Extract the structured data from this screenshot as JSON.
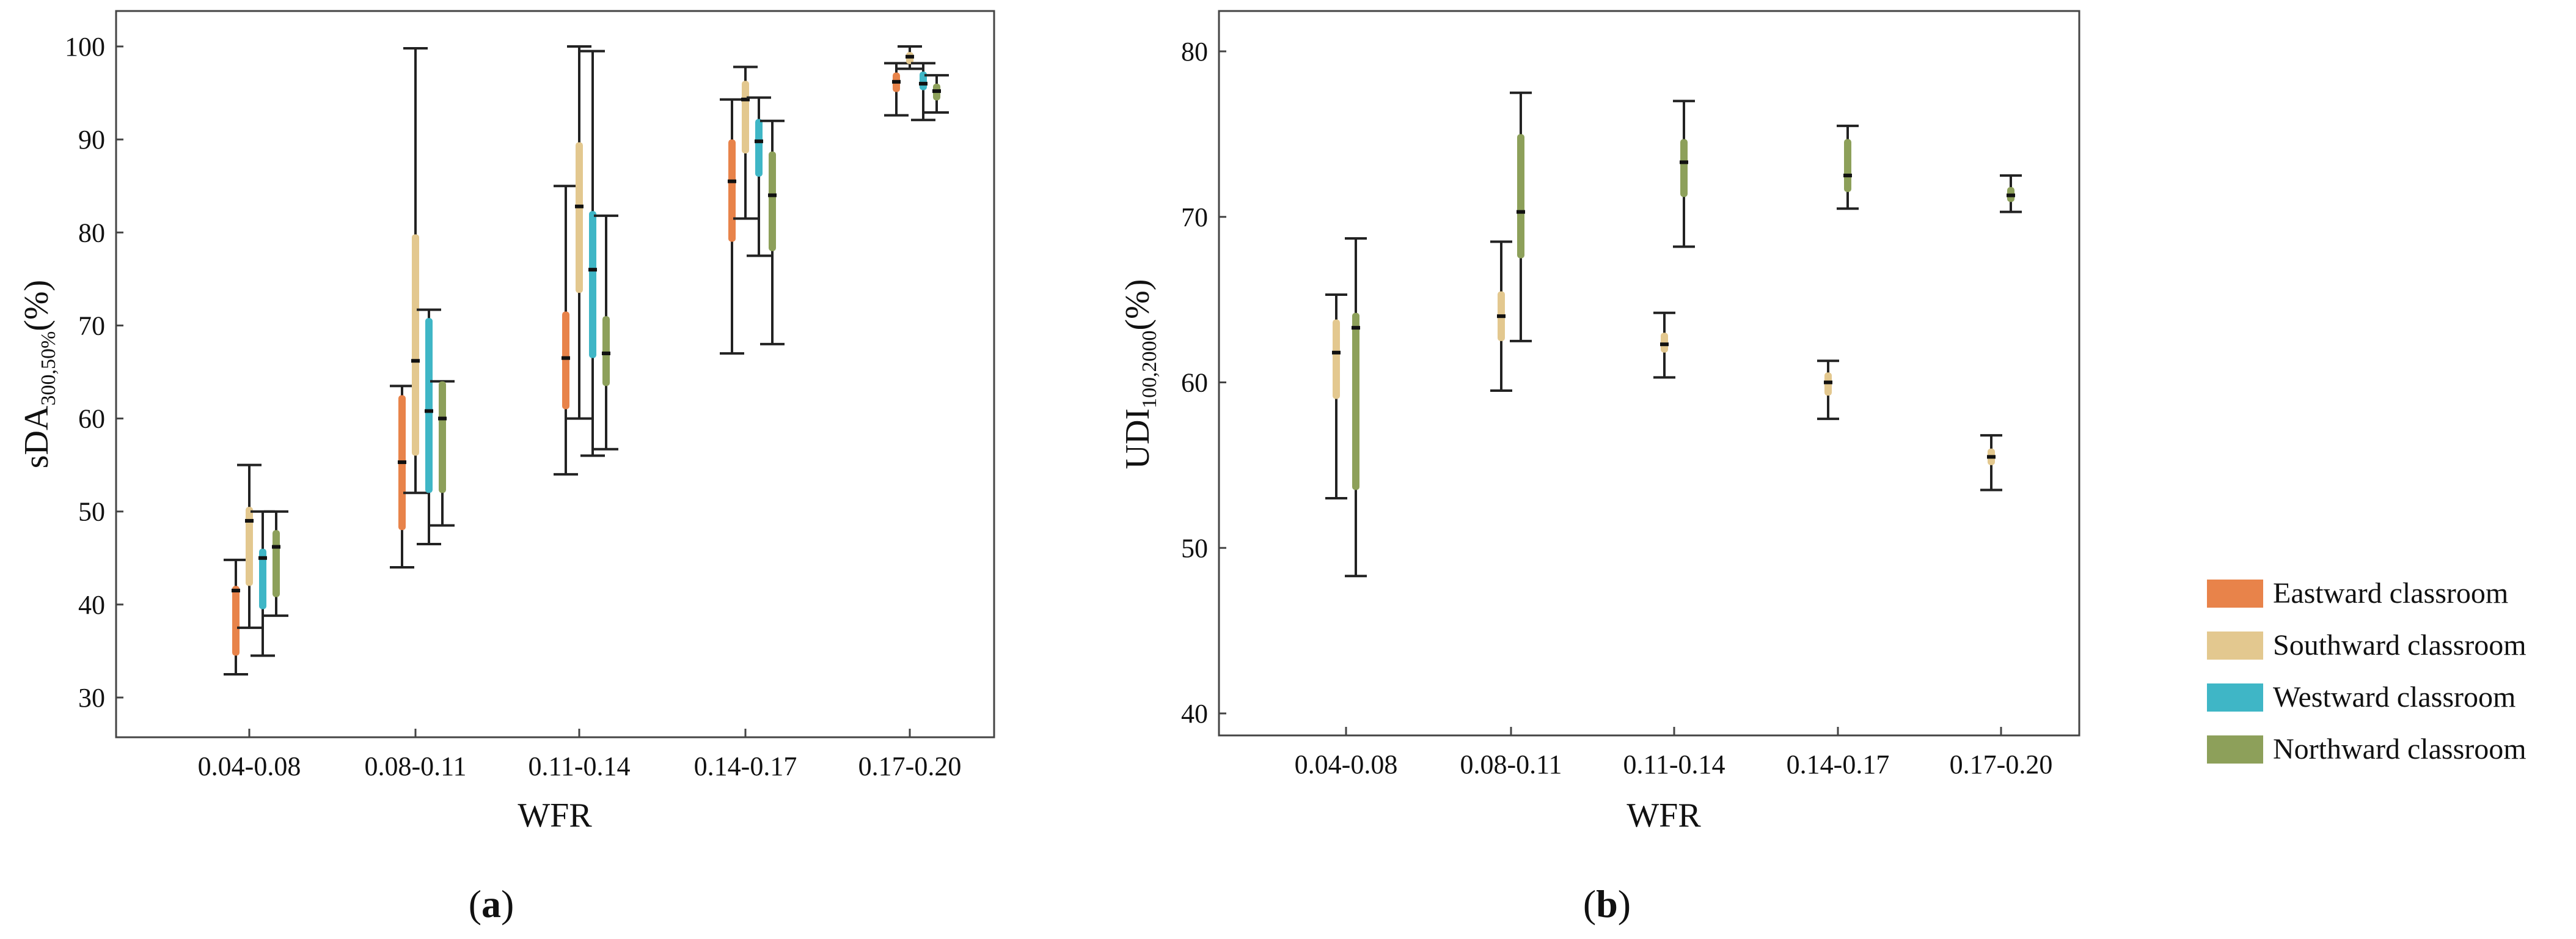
{
  "colors": {
    "east": "#E8834A",
    "south": "#E3C88F",
    "west": "#3FB6C6",
    "north": "#8DA05A",
    "axis": "#444444",
    "whisker": "#222222"
  },
  "chart_data": [
    {
      "type": "box",
      "panel": "a",
      "panel_label": {
        "open": "(",
        "letter": "a",
        "close": ")"
      },
      "xlabel": "WFR",
      "ylabel": {
        "main": "sDA",
        "sub": "300,50%",
        "unit": "(%)"
      },
      "ylim": [
        26,
        104
      ],
      "yticks": [
        30,
        40,
        50,
        60,
        70,
        80,
        90,
        100
      ],
      "categories": [
        "0.04-0.08",
        "0.08-0.11",
        "0.11-0.14",
        "0.14-0.17",
        "0.17-0.20"
      ],
      "series": [
        {
          "name": "Eastward classroom",
          "color_key": "east",
          "boxes": [
            {
              "min": 32.5,
              "q1": 34.5,
              "median": 41.5,
              "q3": 42,
              "max": 44.8
            },
            {
              "min": 44,
              "q1": 48,
              "median": 55.3,
              "q3": 62.5,
              "max": 63.5
            },
            {
              "min": 54,
              "q1": 61,
              "median": 66.5,
              "q3": 71.5,
              "max": 85
            },
            {
              "min": 67,
              "q1": 79,
              "median": 85.5,
              "q3": 90,
              "max": 94.3
            },
            {
              "min": 92.6,
              "q1": 95.1,
              "median": 96.2,
              "q3": 97.2,
              "max": 98.2
            }
          ]
        },
        {
          "name": "Southward classroom",
          "color_key": "south",
          "boxes": [
            {
              "min": 37.5,
              "q1": 42,
              "median": 49,
              "q3": 50.5,
              "max": 55
            },
            {
              "min": 52,
              "q1": 56,
              "median": 66.2,
              "q3": 79.8,
              "max": 99.8
            },
            {
              "min": 60,
              "q1": 73.5,
              "median": 82.8,
              "q3": 89.7,
              "max": 100
            },
            {
              "min": 81.5,
              "q1": 88.5,
              "median": 94.3,
              "q3": 96.3,
              "max": 97.8
            },
            {
              "min": 97.6,
              "q1": 98.1,
              "median": 98.9,
              "q3": 99.4,
              "max": 100
            }
          ]
        },
        {
          "name": "Westward classroom",
          "color_key": "west",
          "boxes": [
            {
              "min": 34.5,
              "q1": 39.5,
              "median": 45,
              "q3": 46,
              "max": 50
            },
            {
              "min": 46.5,
              "q1": 52,
              "median": 60.8,
              "q3": 70.8,
              "max": 71.7
            },
            {
              "min": 56,
              "q1": 66.5,
              "median": 76,
              "q3": 82.3,
              "max": 99.5
            },
            {
              "min": 77.5,
              "q1": 86,
              "median": 89.8,
              "q3": 92.2,
              "max": 94.5
            },
            {
              "min": 92.1,
              "q1": 95.3,
              "median": 96,
              "q3": 97.3,
              "max": 98.2
            }
          ]
        },
        {
          "name": "Northward classroom",
          "color_key": "north",
          "boxes": [
            {
              "min": 38.8,
              "q1": 40.8,
              "median": 46.2,
              "q3": 48,
              "max": 50
            },
            {
              "min": 48.5,
              "q1": 52,
              "median": 60,
              "q3": 64,
              "max": 64
            },
            {
              "min": 56.7,
              "q1": 63.5,
              "median": 67,
              "q3": 71,
              "max": 81.8
            },
            {
              "min": 68,
              "q1": 78,
              "median": 84,
              "q3": 88.7,
              "max": 92
            },
            {
              "min": 92.9,
              "q1": 94.2,
              "median": 95.2,
              "q3": 96,
              "max": 96.9
            }
          ]
        }
      ]
    },
    {
      "type": "box",
      "panel": "b",
      "panel_label": {
        "open": "(",
        "letter": "b",
        "close": ")"
      },
      "xlabel": "WFR",
      "ylabel": {
        "main": "UDI",
        "sub": "100,2000",
        "unit": "(%)"
      },
      "ylim": [
        39,
        82
      ],
      "yticks": [
        40,
        50,
        60,
        70,
        80
      ],
      "categories": [
        "0.04-0.08",
        "0.08-0.11",
        "0.11-0.14",
        "0.14-0.17",
        "0.17-0.20"
      ],
      "series": [
        {
          "name": "Southward classroom",
          "color_key": "south",
          "boxes": [
            {
              "min": 53,
              "q1": 59,
              "median": 61.8,
              "q3": 63.8,
              "max": 65.3
            },
            {
              "min": 59.5,
              "q1": 62.5,
              "median": 64,
              "q3": 65.5,
              "max": 68.5
            },
            {
              "min": 60.3,
              "q1": 61.8,
              "median": 62.3,
              "q3": 63,
              "max": 64.2
            },
            {
              "min": 57.8,
              "q1": 59.2,
              "median": 60,
              "q3": 60.6,
              "max": 61.3
            },
            {
              "min": 53.5,
              "q1": 55,
              "median": 55.5,
              "q3": 56,
              "max": 56.8
            }
          ]
        },
        {
          "name": "Northward classroom",
          "color_key": "north",
          "boxes": [
            {
              "min": 48.3,
              "q1": 53.5,
              "median": 63.3,
              "q3": 64.2,
              "max": 68.7
            },
            {
              "min": 62.5,
              "q1": 67.5,
              "median": 70.3,
              "q3": 75,
              "max": 77.5
            },
            {
              "min": 68.2,
              "q1": 71.2,
              "median": 73.3,
              "q3": 74.7,
              "max": 77
            },
            {
              "min": 70.5,
              "q1": 71.5,
              "median": 72.5,
              "q3": 74.7,
              "max": 75.5
            },
            {
              "min": 70.3,
              "q1": 70.9,
              "median": 71.3,
              "q3": 71.8,
              "max": 72.5
            }
          ]
        }
      ]
    }
  ],
  "legend": [
    {
      "label": "Eastward classroom",
      "color_key": "east"
    },
    {
      "label": "Southward classroom",
      "color_key": "south"
    },
    {
      "label": "Westward classroom",
      "color_key": "west"
    },
    {
      "label": "Northward classroom",
      "color_key": "north"
    }
  ]
}
